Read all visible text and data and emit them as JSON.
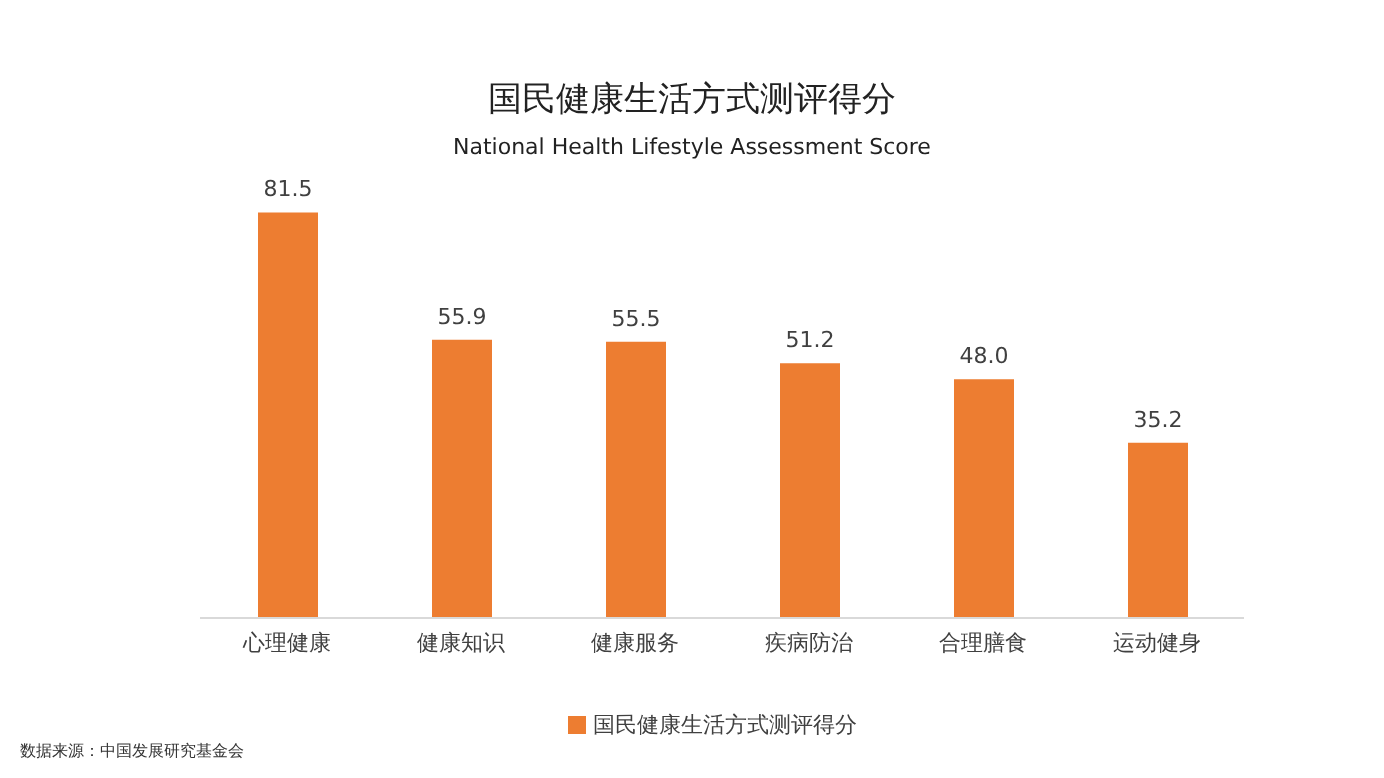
{
  "chart_data": {
    "type": "bar",
    "title": "国民健康生活方式测评得分",
    "subtitle": "National Health Lifestyle Assessment Score",
    "categories": [
      "心理健康",
      "健康知识",
      "健康服务",
      "疾病防治",
      "合理膳食",
      "运动健身"
    ],
    "series": [
      {
        "name": "国民健康生活方式测评得分",
        "color": "#ed7d31",
        "values": [
          81.5,
          55.9,
          55.5,
          51.2,
          48.0,
          35.2
        ],
        "value_labels": [
          "81.5",
          "55.9",
          "55.5",
          "51.2",
          "48.0",
          "35.2"
        ]
      }
    ],
    "legend": "bottom",
    "annotations": [
      "数据来源：中国发展研究基金会"
    ]
  }
}
